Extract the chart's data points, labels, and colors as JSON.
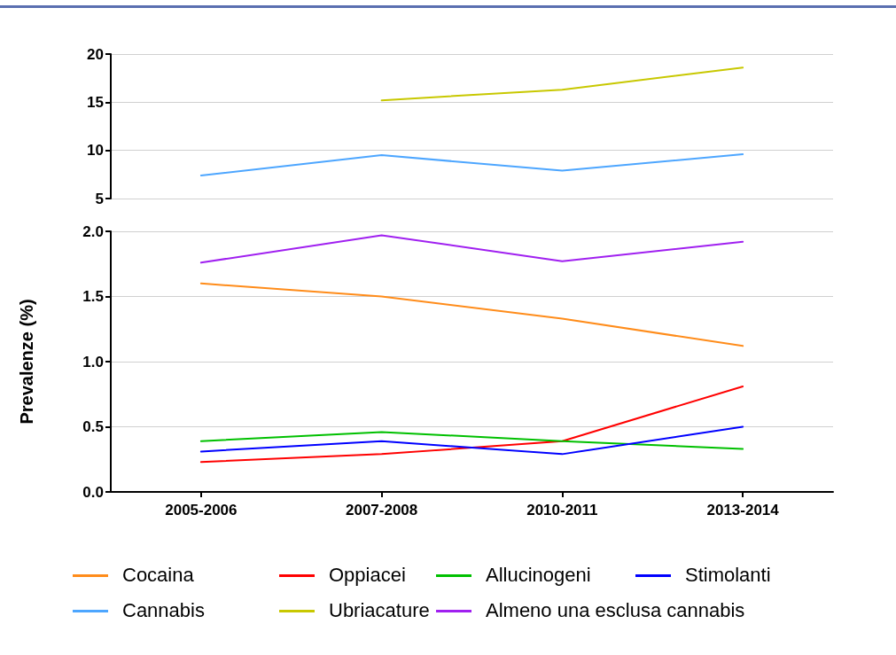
{
  "chart_data": [
    {
      "type": "line",
      "ylim": [
        5,
        20
      ],
      "yticks": [
        5,
        10,
        15,
        20
      ],
      "grid": "y",
      "tick_labels": "y",
      "legend": "bottom",
      "marker": "none",
      "line_style": "solid",
      "series": [
        {
          "name": "Cannabis",
          "color": "#4da6ff",
          "values": [
            7.4,
            9.5,
            7.9,
            9.6
          ]
        },
        {
          "name": "Ubriacature",
          "color": "#c8c800",
          "values": [
            null,
            15.2,
            16.3,
            18.6
          ]
        }
      ]
    },
    {
      "type": "line",
      "categories": [
        "2005-2006",
        "2007-2008",
        "2010-2011",
        "2013-2014"
      ],
      "ylabel": "Prevalenze (%)",
      "ylim": [
        0,
        2
      ],
      "yticks": [
        {
          "value": 0,
          "label": "0.0"
        },
        {
          "value": 0.5,
          "label": "0.5"
        },
        {
          "value": 1,
          "label": "1.0"
        },
        {
          "value": 1.5,
          "label": "1.5"
        },
        {
          "value": 2,
          "label": "2.0"
        }
      ],
      "grid": "y",
      "legend": "bottom",
      "marker": "none",
      "line_style": "solid",
      "series": [
        {
          "name": "Cocaina",
          "color": "#ff8c1a",
          "values": [
            1.6,
            1.5,
            1.33,
            1.12
          ]
        },
        {
          "name": "Oppiacei",
          "color": "#ff0000",
          "values": [
            0.23,
            0.29,
            0.39,
            0.81
          ]
        },
        {
          "name": "Allucinogeni",
          "color": "#00c000",
          "values": [
            0.39,
            0.46,
            0.39,
            0.33
          ]
        },
        {
          "name": "Stimolanti",
          "color": "#0000ff",
          "values": [
            0.31,
            0.39,
            0.29,
            0.5
          ]
        },
        {
          "name": "Almeno una esclusa cannabis",
          "color": "#a020f0",
          "values": [
            1.76,
            1.97,
            1.77,
            1.92
          ]
        }
      ]
    }
  ]
}
